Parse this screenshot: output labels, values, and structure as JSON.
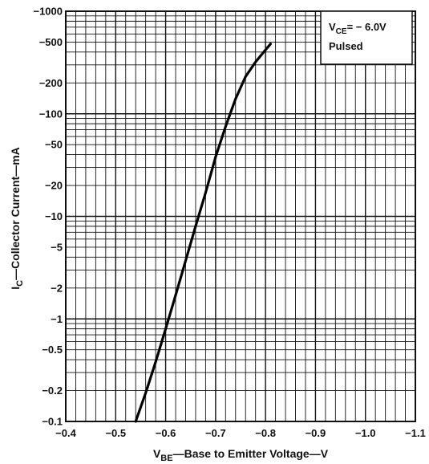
{
  "chart_data": {
    "type": "line",
    "x_scale": "linear",
    "y_scale": "log",
    "xlim": [
      -0.4,
      -1.1
    ],
    "ylim": [
      -0.1,
      -1000
    ],
    "grid": true,
    "x_ticks": [
      -0.4,
      -0.5,
      -0.6,
      -0.7,
      -0.8,
      -0.9,
      -1.0,
      -1.1
    ],
    "x_tick_labels": [
      "−0.4",
      "−0.5",
      "−0.6",
      "−0.7",
      "−0.8",
      "−0.9",
      "−1.0",
      "−1.1"
    ],
    "y_ticks": [
      -1000,
      -500,
      -200,
      -100,
      -50,
      -20,
      -10,
      -5,
      -2,
      -1,
      -0.5,
      -0.2,
      -0.1
    ],
    "y_tick_labels": [
      "−1000",
      "−500",
      "−200",
      "−100",
      "−50",
      "−20",
      "−10",
      "−5",
      "−2",
      "−1",
      "−0.5",
      "−0.2",
      "−0.1"
    ],
    "xlabel_main": "V",
    "xlabel_sub": "BE",
    "xlabel_rest": "—Base to Emitter Voltage—V",
    "ylabel_main": "I",
    "ylabel_sub": "C",
    "ylabel_rest": "—Collector Current—mA",
    "annotation": {
      "line1_main": "V",
      "line1_sub": "CE",
      "line1_rest": "= − 6.0V",
      "line2": "Pulsed"
    },
    "series": [
      {
        "x": [
          -0.54,
          -0.56,
          -0.58,
          -0.6,
          -0.62,
          -0.64,
          -0.66,
          -0.68,
          -0.7,
          -0.72,
          -0.74,
          -0.76,
          -0.78,
          -0.8,
          -0.81
        ],
        "y": [
          -0.1,
          -0.19,
          -0.38,
          -0.8,
          -1.7,
          -3.7,
          -8.0,
          -17,
          -38,
          -75,
          -140,
          -230,
          -320,
          -420,
          -480
        ]
      }
    ]
  }
}
